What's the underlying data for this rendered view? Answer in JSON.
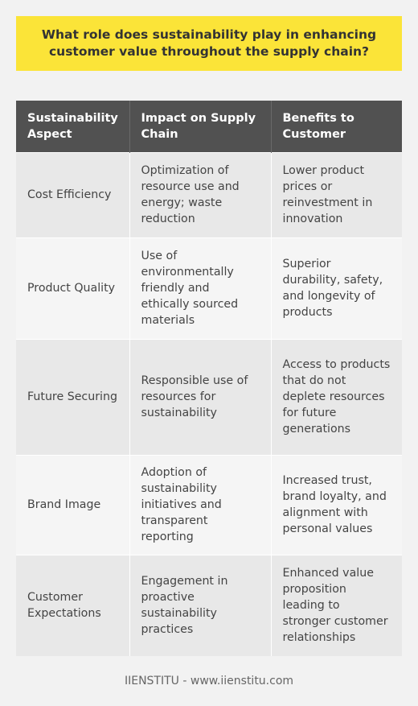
{
  "title": "What role does sustainability play in enhancing customer value throughout the supply chain?",
  "table": {
    "headers": [
      "Sustainability Aspect",
      "Impact on Supply Chain",
      "Benefits to Customer"
    ],
    "rows": [
      [
        "Cost Efficiency",
        "Optimization of resource use and energy; waste reduction",
        "Lower product prices or reinvestment in innovation"
      ],
      [
        "Product Quality",
        "Use of environmentally friendly and ethically sourced materials",
        "Superior durability, safety, and longevity of products"
      ],
      [
        "Future Securing",
        "Responsible use of resources for sustainability",
        "Access to products that do not deplete resources for future generations"
      ],
      [
        "Brand Image",
        "Adoption of sustainability initiatives and transparent reporting",
        "Increased trust, brand loyalty, and alignment with personal values"
      ],
      [
        "Customer Expectations",
        "Engagement in proactive sustainability practices",
        "Enhanced value proposition leading to stronger customer relationships"
      ]
    ]
  },
  "footer": "IIENSTITU - www.iienstitu.com",
  "colors": {
    "title_background": "#fbe438",
    "header_background": "#515151",
    "row_odd": "#e8e8e8",
    "row_even": "#f5f5f5"
  }
}
